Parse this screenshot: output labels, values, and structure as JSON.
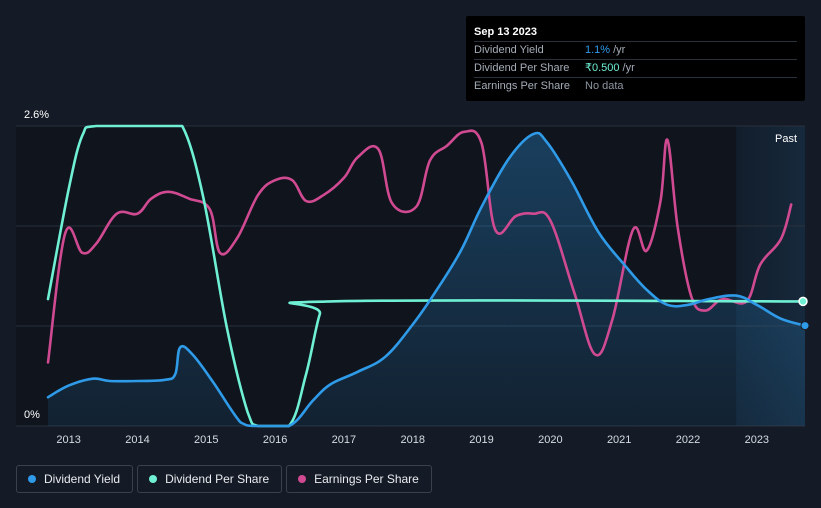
{
  "tooltip": {
    "date": "Sep 13 2023",
    "rows": [
      {
        "name": "Dividend Yield",
        "value": "1.1%",
        "unit": "/yr",
        "color": "#2f9be8"
      },
      {
        "name": "Dividend Per Share",
        "value": "₹0.500",
        "unit": "/yr",
        "color": "#6ff0d4"
      },
      {
        "name": "Earnings Per Share",
        "value": "No data",
        "unit": "",
        "color": "#8e96a1"
      }
    ]
  },
  "legend": [
    {
      "label": "Dividend Yield",
      "color": "#2f9be8"
    },
    {
      "label": "Dividend Per Share",
      "color": "#6ff0d4"
    },
    {
      "label": "Earnings Per Share",
      "color": "#d04a92"
    }
  ],
  "chart_data": {
    "type": "line",
    "past_label": "Past",
    "y_top_label": "2.6%",
    "y_bottom_label": "0%",
    "ylim": [
      0,
      2.6
    ],
    "xlim": [
      2012.7,
      2023.7
    ],
    "past_region_start": 2022.7,
    "x_ticks": [
      "2013",
      "2014",
      "2015",
      "2016",
      "2017",
      "2018",
      "2019",
      "2020",
      "2021",
      "2022",
      "2023"
    ],
    "series": [
      {
        "name": "Dividend Yield",
        "color": "#2f9be8",
        "filled": true,
        "points": [
          [
            2012.7,
            0.25
          ],
          [
            2013.0,
            0.35
          ],
          [
            2013.35,
            0.41
          ],
          [
            2013.6,
            0.39
          ],
          [
            2014.0,
            0.39
          ],
          [
            2014.4,
            0.4
          ],
          [
            2014.55,
            0.45
          ],
          [
            2014.62,
            0.68
          ],
          [
            2014.8,
            0.62
          ],
          [
            2015.1,
            0.38
          ],
          [
            2015.5,
            0.03
          ],
          [
            2015.7,
            0.0
          ],
          [
            2016.2,
            0.0
          ],
          [
            2016.55,
            0.22
          ],
          [
            2016.8,
            0.36
          ],
          [
            2017.2,
            0.47
          ],
          [
            2017.6,
            0.6
          ],
          [
            2018.0,
            0.88
          ],
          [
            2018.35,
            1.18
          ],
          [
            2018.7,
            1.52
          ],
          [
            2019.0,
            1.9
          ],
          [
            2019.4,
            2.32
          ],
          [
            2019.75,
            2.53
          ],
          [
            2019.95,
            2.46
          ],
          [
            2020.3,
            2.13
          ],
          [
            2020.7,
            1.68
          ],
          [
            2021.1,
            1.38
          ],
          [
            2021.4,
            1.18
          ],
          [
            2021.7,
            1.05
          ],
          [
            2022.0,
            1.05
          ],
          [
            2022.3,
            1.1
          ],
          [
            2022.7,
            1.13
          ],
          [
            2023.0,
            1.05
          ],
          [
            2023.35,
            0.93
          ],
          [
            2023.7,
            0.87
          ]
        ]
      },
      {
        "name": "Dividend Per Share",
        "color": "#6ff0d4",
        "filled": false,
        "points": [
          [
            2012.7,
            1.1
          ],
          [
            2013.0,
            2.05
          ],
          [
            2013.2,
            2.52
          ],
          [
            2013.4,
            2.6
          ],
          [
            2014.4,
            2.6
          ],
          [
            2014.65,
            2.6
          ],
          [
            2014.95,
            2.0
          ],
          [
            2015.3,
            0.85
          ],
          [
            2015.6,
            0.12
          ],
          [
            2015.75,
            0.0
          ],
          [
            2016.2,
            0.0
          ],
          [
            2016.45,
            0.45
          ],
          [
            2016.65,
            0.97
          ],
          [
            2016.8,
            1.08
          ],
          [
            2023.7,
            1.08
          ]
        ]
      },
      {
        "name": "Earnings Per Share",
        "color": "#d04a92",
        "filled": false,
        "points": [
          [
            2012.7,
            0.55
          ],
          [
            2012.95,
            1.67
          ],
          [
            2013.2,
            1.5
          ],
          [
            2013.4,
            1.58
          ],
          [
            2013.7,
            1.84
          ],
          [
            2014.0,
            1.84
          ],
          [
            2014.2,
            1.97
          ],
          [
            2014.45,
            2.03
          ],
          [
            2014.75,
            1.97
          ],
          [
            2015.05,
            1.88
          ],
          [
            2015.2,
            1.5
          ],
          [
            2015.45,
            1.63
          ],
          [
            2015.75,
            2.0
          ],
          [
            2016.0,
            2.13
          ],
          [
            2016.25,
            2.13
          ],
          [
            2016.45,
            1.95
          ],
          [
            2016.7,
            2.0
          ],
          [
            2017.0,
            2.15
          ],
          [
            2017.2,
            2.33
          ],
          [
            2017.5,
            2.4
          ],
          [
            2017.7,
            1.93
          ],
          [
            2018.05,
            1.9
          ],
          [
            2018.25,
            2.3
          ],
          [
            2018.5,
            2.43
          ],
          [
            2018.75,
            2.55
          ],
          [
            2019.0,
            2.45
          ],
          [
            2019.2,
            1.7
          ],
          [
            2019.5,
            1.82
          ],
          [
            2019.75,
            1.84
          ],
          [
            2020.0,
            1.78
          ],
          [
            2020.35,
            1.15
          ],
          [
            2020.65,
            0.62
          ],
          [
            2020.9,
            0.92
          ],
          [
            2021.2,
            1.7
          ],
          [
            2021.4,
            1.52
          ],
          [
            2021.6,
            1.95
          ],
          [
            2021.7,
            2.48
          ],
          [
            2021.85,
            1.72
          ],
          [
            2022.05,
            1.12
          ],
          [
            2022.25,
            1.0
          ],
          [
            2022.5,
            1.1
          ],
          [
            2022.85,
            1.08
          ],
          [
            2023.05,
            1.4
          ],
          [
            2023.35,
            1.62
          ],
          [
            2023.5,
            1.92
          ]
        ]
      }
    ]
  }
}
